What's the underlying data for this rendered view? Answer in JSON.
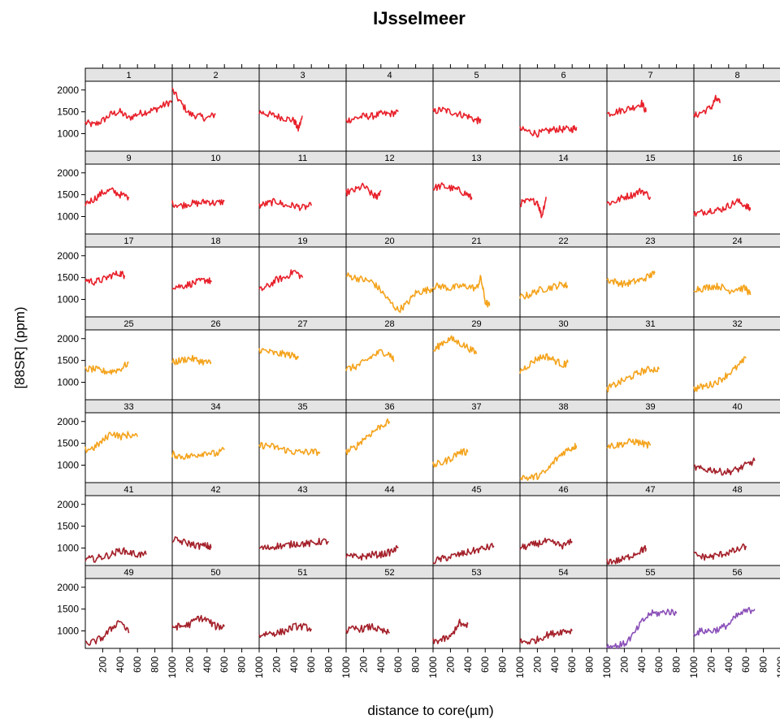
{
  "chart_data": {
    "type": "line",
    "title": "IJsselmeer",
    "xlabel": "distance to core(µm)",
    "ylabel": "[88SR] (ppm)",
    "xlim": [
      0,
      1000
    ],
    "ylim": [
      600,
      2200
    ],
    "x_ticks": [
      200,
      400,
      600,
      800,
      1000
    ],
    "y_ticks": [
      1000,
      1500,
      2000
    ],
    "layout": {
      "cols": 8,
      "rows": 7
    },
    "group_colors": {
      "red": "#e8202a",
      "orange": "#f4a31c",
      "darkred": "#a4202a",
      "purple": "#8a4fb8"
    },
    "panels": [
      {
        "label": "1",
        "color": "#e8202a",
        "x": [
          0,
          100,
          200,
          300,
          400,
          500,
          600,
          700,
          800,
          900,
          1000
        ],
        "y": [
          1250,
          1200,
          1300,
          1450,
          1500,
          1350,
          1450,
          1500,
          1550,
          1650,
          1750
        ]
      },
      {
        "label": "2",
        "color": "#e8202a",
        "x": [
          0,
          100,
          200,
          300,
          400,
          500
        ],
        "y": [
          2000,
          1700,
          1450,
          1400,
          1350,
          1450
        ]
      },
      {
        "label": "3",
        "color": "#e8202a",
        "x": [
          0,
          100,
          200,
          300,
          400,
          450,
          500
        ],
        "y": [
          1500,
          1450,
          1400,
          1350,
          1300,
          1100,
          1400
        ]
      },
      {
        "label": "4",
        "color": "#e8202a",
        "x": [
          0,
          100,
          200,
          300,
          400,
          500,
          600
        ],
        "y": [
          1300,
          1350,
          1400,
          1400,
          1450,
          1450,
          1500
        ]
      },
      {
        "label": "5",
        "color": "#e8202a",
        "x": [
          0,
          100,
          200,
          300,
          400,
          500,
          550
        ],
        "y": [
          1500,
          1550,
          1500,
          1450,
          1400,
          1300,
          1300
        ]
      },
      {
        "label": "6",
        "color": "#e8202a",
        "x": [
          0,
          100,
          200,
          300,
          400,
          500,
          600,
          650
        ],
        "y": [
          1100,
          1050,
          1000,
          1050,
          1100,
          1100,
          1100,
          1150
        ]
      },
      {
        "label": "7",
        "color": "#e8202a",
        "x": [
          0,
          100,
          200,
          300,
          400,
          450
        ],
        "y": [
          1450,
          1500,
          1550,
          1600,
          1700,
          1500
        ]
      },
      {
        "label": "8",
        "color": "#e8202a",
        "x": [
          0,
          100,
          200,
          250,
          300
        ],
        "y": [
          1400,
          1500,
          1600,
          1800,
          1700
        ]
      },
      {
        "label": "9",
        "color": "#e8202a",
        "x": [
          0,
          100,
          200,
          300,
          400,
          500
        ],
        "y": [
          1300,
          1400,
          1550,
          1600,
          1500,
          1450
        ]
      },
      {
        "label": "10",
        "color": "#e8202a",
        "x": [
          0,
          100,
          200,
          300,
          400,
          500,
          600
        ],
        "y": [
          1300,
          1250,
          1300,
          1300,
          1350,
          1300,
          1350
        ]
      },
      {
        "label": "11",
        "color": "#e8202a",
        "x": [
          0,
          100,
          200,
          300,
          400,
          500,
          600
        ],
        "y": [
          1250,
          1300,
          1350,
          1250,
          1250,
          1200,
          1250
        ]
      },
      {
        "label": "12",
        "color": "#e8202a",
        "x": [
          0,
          100,
          200,
          300,
          350,
          400
        ],
        "y": [
          1550,
          1600,
          1700,
          1500,
          1450,
          1600
        ]
      },
      {
        "label": "13",
        "color": "#e8202a",
        "x": [
          0,
          100,
          200,
          300,
          400,
          450
        ],
        "y": [
          1650,
          1700,
          1650,
          1600,
          1500,
          1400
        ]
      },
      {
        "label": "14",
        "color": "#e8202a",
        "x": [
          0,
          100,
          200,
          250,
          300
        ],
        "y": [
          1300,
          1350,
          1350,
          1000,
          1450
        ]
      },
      {
        "label": "15",
        "color": "#e8202a",
        "x": [
          0,
          100,
          200,
          300,
          400,
          500
        ],
        "y": [
          1300,
          1350,
          1450,
          1500,
          1600,
          1450
        ]
      },
      {
        "label": "16",
        "color": "#e8202a",
        "x": [
          0,
          100,
          200,
          300,
          400,
          500,
          600,
          650
        ],
        "y": [
          1050,
          1100,
          1150,
          1150,
          1250,
          1350,
          1250,
          1150
        ]
      },
      {
        "label": "17",
        "color": "#e8202a",
        "x": [
          0,
          100,
          200,
          300,
          400,
          450
        ],
        "y": [
          1450,
          1400,
          1450,
          1550,
          1600,
          1550
        ]
      },
      {
        "label": "18",
        "color": "#e8202a",
        "x": [
          0,
          100,
          200,
          300,
          400,
          450
        ],
        "y": [
          1300,
          1300,
          1350,
          1400,
          1450,
          1400
        ]
      },
      {
        "label": "19",
        "color": "#e8202a",
        "x": [
          0,
          100,
          200,
          300,
          400,
          500
        ],
        "y": [
          1200,
          1300,
          1450,
          1500,
          1650,
          1500
        ]
      },
      {
        "label": "20",
        "color": "#f4a31c",
        "x": [
          0,
          100,
          200,
          300,
          400,
          500,
          600,
          700,
          800,
          900,
          1000
        ],
        "y": [
          1550,
          1500,
          1450,
          1400,
          1200,
          950,
          750,
          900,
          1150,
          1200,
          1250
        ]
      },
      {
        "label": "21",
        "color": "#f4a31c",
        "x": [
          0,
          100,
          200,
          300,
          400,
          500,
          550,
          600,
          650
        ],
        "y": [
          1300,
          1300,
          1250,
          1300,
          1300,
          1250,
          1500,
          950,
          850
        ]
      },
      {
        "label": "22",
        "color": "#f4a31c",
        "x": [
          0,
          100,
          200,
          300,
          400,
          500,
          550
        ],
        "y": [
          1050,
          1100,
          1200,
          1250,
          1300,
          1350,
          1300
        ]
      },
      {
        "label": "23",
        "color": "#f4a31c",
        "x": [
          0,
          100,
          200,
          300,
          400,
          500,
          550
        ],
        "y": [
          1450,
          1400,
          1350,
          1400,
          1450,
          1550,
          1600
        ]
      },
      {
        "label": "24",
        "color": "#f4a31c",
        "x": [
          0,
          100,
          200,
          300,
          400,
          500,
          600,
          650
        ],
        "y": [
          1250,
          1250,
          1300,
          1300,
          1200,
          1250,
          1250,
          1100
        ]
      },
      {
        "label": "25",
        "color": "#f4a31c",
        "x": [
          0,
          100,
          200,
          300,
          400,
          500
        ],
        "y": [
          1300,
          1300,
          1250,
          1250,
          1300,
          1450
        ]
      },
      {
        "label": "26",
        "color": "#f4a31c",
        "x": [
          0,
          100,
          200,
          300,
          400,
          450
        ],
        "y": [
          1450,
          1500,
          1550,
          1500,
          1450,
          1450
        ]
      },
      {
        "label": "27",
        "color": "#f4a31c",
        "x": [
          0,
          100,
          200,
          300,
          400,
          450
        ],
        "y": [
          1750,
          1700,
          1650,
          1650,
          1600,
          1600
        ]
      },
      {
        "label": "28",
        "color": "#f4a31c",
        "x": [
          0,
          100,
          200,
          300,
          400,
          500,
          550
        ],
        "y": [
          1300,
          1350,
          1450,
          1600,
          1700,
          1650,
          1500
        ]
      },
      {
        "label": "29",
        "color": "#f4a31c",
        "x": [
          0,
          100,
          200,
          300,
          400,
          500
        ],
        "y": [
          1700,
          1900,
          2000,
          1900,
          1800,
          1650
        ]
      },
      {
        "label": "30",
        "color": "#f4a31c",
        "x": [
          0,
          100,
          200,
          300,
          400,
          500,
          550
        ],
        "y": [
          1250,
          1400,
          1550,
          1600,
          1500,
          1400,
          1450
        ]
      },
      {
        "label": "31",
        "color": "#f4a31c",
        "x": [
          0,
          100,
          200,
          300,
          400,
          500,
          600
        ],
        "y": [
          850,
          950,
          1050,
          1150,
          1250,
          1300,
          1300
        ]
      },
      {
        "label": "32",
        "color": "#f4a31c",
        "x": [
          0,
          100,
          200,
          300,
          400,
          500,
          600
        ],
        "y": [
          850,
          900,
          950,
          1050,
          1200,
          1350,
          1550
        ]
      },
      {
        "label": "33",
        "color": "#f4a31c",
        "x": [
          0,
          100,
          200,
          300,
          400,
          500,
          600
        ],
        "y": [
          1350,
          1400,
          1550,
          1750,
          1650,
          1700,
          1650
        ]
      },
      {
        "label": "34",
        "color": "#f4a31c",
        "x": [
          0,
          100,
          200,
          300,
          400,
          500,
          600
        ],
        "y": [
          1250,
          1200,
          1200,
          1250,
          1300,
          1250,
          1350
        ]
      },
      {
        "label": "35",
        "color": "#f4a31c",
        "x": [
          0,
          100,
          200,
          300,
          400,
          500,
          600,
          700
        ],
        "y": [
          1450,
          1450,
          1400,
          1350,
          1300,
          1300,
          1300,
          1300
        ]
      },
      {
        "label": "36",
        "color": "#f4a31c",
        "x": [
          0,
          100,
          200,
          300,
          400,
          500
        ],
        "y": [
          1300,
          1400,
          1600,
          1750,
          1900,
          2000
        ]
      },
      {
        "label": "37",
        "color": "#f4a31c",
        "x": [
          0,
          100,
          200,
          300,
          400
        ],
        "y": [
          1000,
          1050,
          1150,
          1300,
          1300
        ]
      },
      {
        "label": "38",
        "color": "#f4a31c",
        "x": [
          0,
          100,
          200,
          300,
          400,
          500,
          600,
          650
        ],
        "y": [
          750,
          700,
          750,
          850,
          1100,
          1300,
          1400,
          1450
        ]
      },
      {
        "label": "39",
        "color": "#f4a31c",
        "x": [
          0,
          100,
          200,
          300,
          400,
          500
        ],
        "y": [
          1450,
          1450,
          1500,
          1550,
          1500,
          1450
        ]
      },
      {
        "label": "40",
        "color": "#a4202a",
        "x": [
          0,
          100,
          200,
          300,
          400,
          500,
          600,
          700
        ],
        "y": [
          950,
          900,
          900,
          850,
          850,
          900,
          1000,
          1100
        ]
      },
      {
        "label": "41",
        "color": "#a4202a",
        "x": [
          0,
          100,
          200,
          300,
          400,
          500,
          600,
          700
        ],
        "y": [
          750,
          750,
          800,
          850,
          950,
          900,
          850,
          850
        ]
      },
      {
        "label": "42",
        "color": "#a4202a",
        "x": [
          0,
          100,
          200,
          300,
          400,
          450
        ],
        "y": [
          1200,
          1150,
          1100,
          1050,
          1050,
          1000
        ]
      },
      {
        "label": "43",
        "color": "#a4202a",
        "x": [
          0,
          100,
          200,
          300,
          400,
          500,
          600,
          700,
          800
        ],
        "y": [
          1000,
          1000,
          1050,
          1050,
          1100,
          1100,
          1100,
          1150,
          1150
        ]
      },
      {
        "label": "44",
        "color": "#a4202a",
        "x": [
          0,
          100,
          200,
          300,
          400,
          500,
          600
        ],
        "y": [
          800,
          800,
          800,
          850,
          850,
          900,
          1000
        ]
      },
      {
        "label": "45",
        "color": "#a4202a",
        "x": [
          0,
          100,
          200,
          300,
          400,
          500,
          600,
          700
        ],
        "y": [
          700,
          750,
          800,
          850,
          900,
          950,
          1000,
          1050
        ]
      },
      {
        "label": "46",
        "color": "#a4202a",
        "x": [
          0,
          100,
          200,
          300,
          400,
          500,
          600
        ],
        "y": [
          1000,
          1050,
          1100,
          1150,
          1100,
          1050,
          1150
        ]
      },
      {
        "label": "47",
        "color": "#a4202a",
        "x": [
          0,
          100,
          200,
          300,
          400,
          450
        ],
        "y": [
          700,
          700,
          750,
          850,
          950,
          1000
        ]
      },
      {
        "label": "48",
        "color": "#a4202a",
        "x": [
          0,
          100,
          200,
          300,
          400,
          500,
          600
        ],
        "y": [
          850,
          800,
          800,
          850,
          900,
          950,
          1050
        ]
      },
      {
        "label": "49",
        "color": "#a4202a",
        "x": [
          0,
          100,
          200,
          300,
          400,
          500
        ],
        "y": [
          700,
          750,
          850,
          1050,
          1250,
          950
        ]
      },
      {
        "label": "50",
        "color": "#a4202a",
        "x": [
          0,
          100,
          200,
          300,
          400,
          500,
          600
        ],
        "y": [
          1100,
          1100,
          1150,
          1300,
          1250,
          1100,
          1100
        ]
      },
      {
        "label": "51",
        "color": "#a4202a",
        "x": [
          0,
          100,
          200,
          300,
          400,
          500,
          600
        ],
        "y": [
          900,
          950,
          950,
          1000,
          1100,
          1100,
          1050
        ]
      },
      {
        "label": "52",
        "color": "#a4202a",
        "x": [
          0,
          100,
          200,
          300,
          400,
          500
        ],
        "y": [
          1000,
          1050,
          1050,
          1100,
          1000,
          950
        ]
      },
      {
        "label": "53",
        "color": "#a4202a",
        "x": [
          0,
          100,
          200,
          300,
          350,
          400
        ],
        "y": [
          750,
          800,
          850,
          1200,
          1100,
          1150
        ]
      },
      {
        "label": "54",
        "color": "#a4202a",
        "x": [
          0,
          100,
          200,
          300,
          400,
          500,
          600
        ],
        "y": [
          750,
          750,
          800,
          900,
          950,
          1000,
          1000
        ]
      },
      {
        "label": "55",
        "color": "#8a4fb8",
        "x": [
          0,
          100,
          200,
          300,
          400,
          500,
          600,
          700,
          800
        ],
        "y": [
          650,
          650,
          700,
          900,
          1200,
          1400,
          1400,
          1450,
          1400
        ]
      },
      {
        "label": "56",
        "color": "#8a4fb8",
        "x": [
          0,
          100,
          200,
          300,
          400,
          500,
          600,
          700
        ],
        "y": [
          950,
          1000,
          1000,
          1050,
          1150,
          1350,
          1450,
          1500
        ]
      }
    ]
  }
}
